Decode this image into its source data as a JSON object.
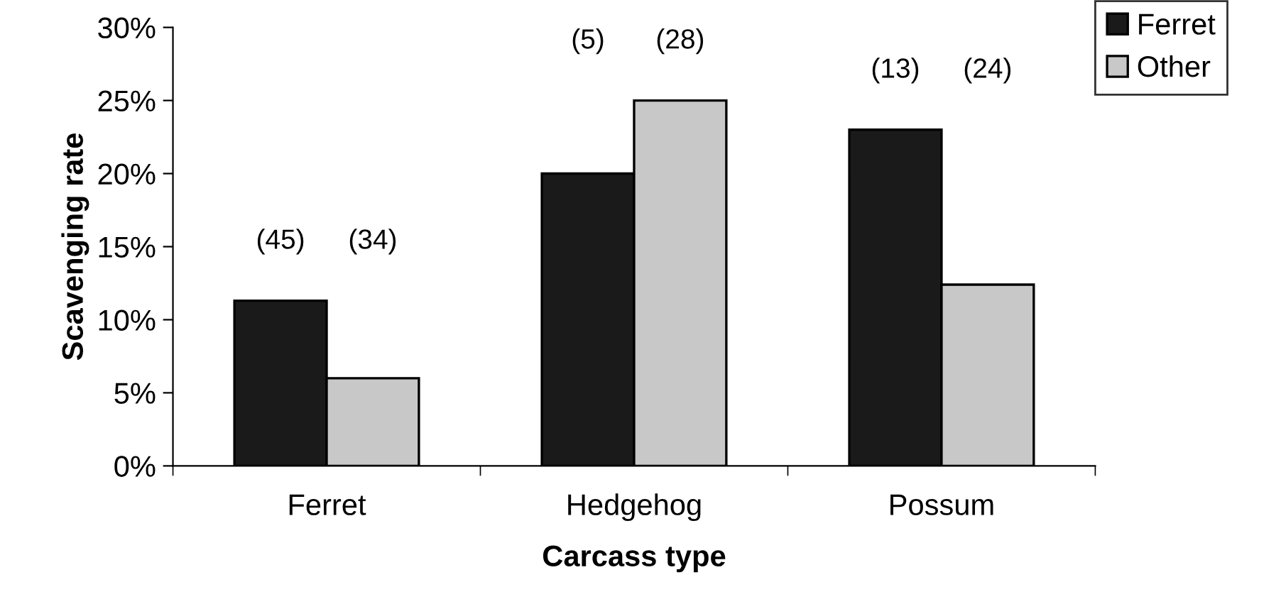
{
  "chart_data": {
    "type": "bar",
    "xlabel": "Carcass type",
    "ylabel": "Scavenging rate",
    "categories": [
      "Ferret",
      "Hedgehog",
      "Possum"
    ],
    "series": [
      {
        "name": "Ferret",
        "color": "#1a1a1a",
        "values": [
          11.3,
          20.0,
          23.0
        ]
      },
      {
        "name": "Other",
        "color": "#c8c8c8",
        "values": [
          6.0,
          25.0,
          12.4
        ]
      }
    ],
    "annotations": [
      "(45)",
      "(34)",
      "(5)",
      "(28)",
      "(13)",
      "(24)"
    ],
    "ylim": [
      0,
      30
    ],
    "yticks": [
      {
        "value": 0,
        "label": "0%"
      },
      {
        "value": 5,
        "label": "5%"
      },
      {
        "value": 10,
        "label": "10%"
      },
      {
        "value": 15,
        "label": "15%"
      },
      {
        "value": 20,
        "label": "20%"
      },
      {
        "value": 25,
        "label": "25%"
      },
      {
        "value": 30,
        "label": "30%"
      }
    ],
    "grid": false,
    "legend": "top right"
  }
}
